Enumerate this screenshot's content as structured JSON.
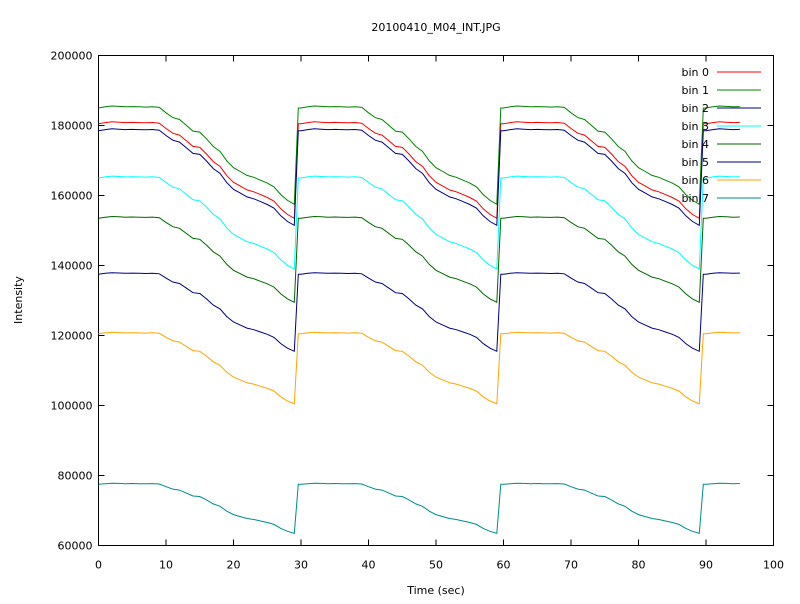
{
  "chart_data": {
    "type": "line",
    "title": "20100410_M04_INT.JPG",
    "xlabel": "Time (sec)",
    "ylabel": "Intensity",
    "xlim": [
      0,
      100
    ],
    "ylim": [
      60000,
      200000
    ],
    "xticks": [
      0,
      10,
      20,
      30,
      40,
      50,
      60,
      70,
      80,
      90,
      100
    ],
    "yticks": [
      60000,
      80000,
      100000,
      120000,
      140000,
      160000,
      180000,
      200000
    ],
    "grid": false,
    "legend_position": "top-right",
    "series": [
      {
        "name": "bin 0",
        "color": "#ff0000",
        "start": 180500,
        "end": 153500
      },
      {
        "name": "bin 1",
        "color": "#008000",
        "start": 185000,
        "end": 157500
      },
      {
        "name": "bin 2",
        "color": "#000080",
        "start": 178500,
        "end": 151500
      },
      {
        "name": "bin 3",
        "color": "#00ffff",
        "start": 165000,
        "end": 139000
      },
      {
        "name": "bin 4",
        "color": "#006400",
        "start": 153500,
        "end": 129500
      },
      {
        "name": "bin 5",
        "color": "#000080",
        "start": 137500,
        "end": 115500
      },
      {
        "name": "bin 6",
        "color": "#ffa500",
        "start": 120500,
        "end": 100500
      },
      {
        "name": "bin 7",
        "color": "#008b8b",
        "start": 77500,
        "end": 63500
      }
    ],
    "pattern": {
      "period": 30,
      "cycle_starts": [
        0,
        30,
        60,
        90
      ],
      "x_max": 95,
      "step_times": [
        0,
        1,
        2,
        3,
        4,
        5,
        6,
        7,
        8,
        9,
        10,
        11,
        12,
        13,
        14,
        15,
        16,
        17,
        18,
        19,
        20,
        21,
        22,
        23,
        24,
        25,
        26,
        27,
        28,
        29
      ],
      "shape": [
        0.0,
        0.1,
        0.17,
        0.14,
        0.1,
        0.12,
        0.1,
        0.08,
        0.11,
        0.05,
        -0.05,
        -0.1,
        -0.12,
        -0.18,
        -0.24,
        -0.25,
        -0.32,
        -0.4,
        -0.45,
        -0.55,
        -0.62,
        -0.66,
        -0.7,
        -0.72,
        -0.75,
        -0.78,
        -0.82,
        -0.9,
        -0.96,
        -1.0
      ]
    }
  }
}
